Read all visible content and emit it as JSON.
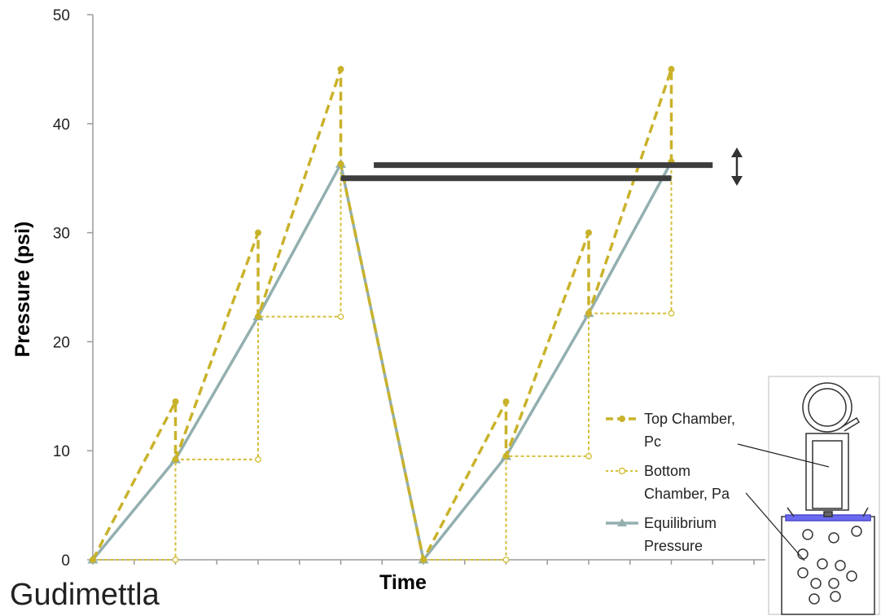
{
  "chart_data": {
    "type": "line",
    "xlabel": "Time",
    "ylabel": "Pressure (psi)",
    "ylim": [
      0,
      50
    ],
    "yticks": [
      "0",
      "10",
      "20",
      "30",
      "40",
      "50"
    ],
    "grid": false,
    "x_ticks_labeled": false,
    "series": [
      {
        "name": "Top Chamber, Pc",
        "style": "dashed",
        "marker": "circle",
        "color": "#C9B22A",
        "points": [
          [
            0,
            0
          ],
          [
            1,
            14.5
          ],
          [
            1,
            9.2
          ],
          [
            2,
            30
          ],
          [
            2,
            22.3
          ],
          [
            3,
            45
          ],
          [
            3,
            36.3
          ],
          [
            4,
            0
          ],
          [
            5,
            14.5
          ],
          [
            5,
            9.5
          ],
          [
            6,
            30
          ],
          [
            6,
            22.6
          ],
          [
            7,
            45
          ],
          [
            7,
            36.5
          ]
        ]
      },
      {
        "name": "Bottom Chamber, Pa",
        "style": "dotted",
        "marker": "open-circle",
        "color": "#D4BF3A",
        "points": [
          [
            0,
            0
          ],
          [
            1,
            0
          ],
          [
            1,
            9.2
          ],
          [
            2,
            9.2
          ],
          [
            2,
            22.3
          ],
          [
            3,
            22.3
          ],
          [
            3,
            36.3
          ],
          [
            4,
            0
          ],
          [
            5,
            0
          ],
          [
            5,
            9.5
          ],
          [
            6,
            9.5
          ],
          [
            6,
            22.6
          ],
          [
            7,
            22.6
          ],
          [
            7,
            36.5
          ]
        ]
      },
      {
        "name": "Equilibrium Pressure",
        "style": "solid",
        "marker": "triangle",
        "color": "#93AFAF",
        "points": [
          [
            0,
            0
          ],
          [
            1,
            9.2
          ],
          [
            2,
            22.3
          ],
          [
            3,
            36.3
          ],
          [
            4,
            0
          ],
          [
            5,
            9.5
          ],
          [
            6,
            22.6
          ],
          [
            7,
            36.5
          ]
        ]
      }
    ],
    "reference_lines": [
      {
        "y": 35.0,
        "x_from": 3.0,
        "x_to": 7.0
      },
      {
        "y": 36.2,
        "x_from": 3.4,
        "x_to": 7.5
      }
    ],
    "legend": {
      "placement": "bottom-right",
      "entries": [
        {
          "line1": "Top Chamber,",
          "line2": "Pc"
        },
        {
          "line1": "Bottom",
          "line2": "Chamber, Pa"
        },
        {
          "line1": "Equilibrium",
          "line2": "Pressure"
        }
      ]
    },
    "annotations": [
      "double-headed-arrow"
    ],
    "credit": "Gudimettla"
  }
}
